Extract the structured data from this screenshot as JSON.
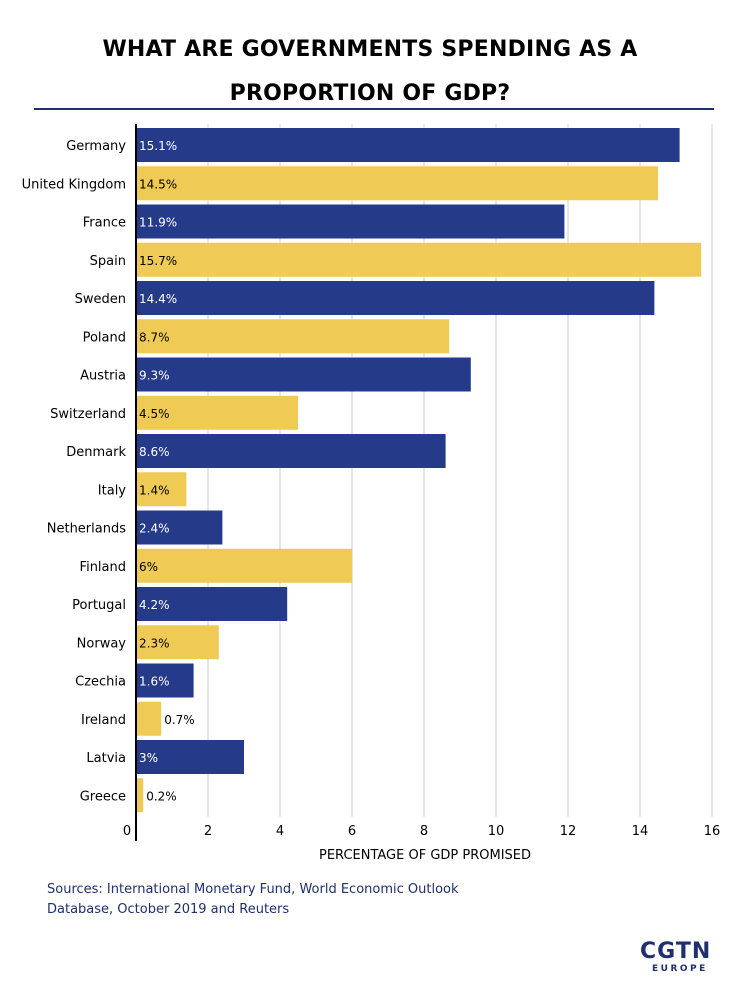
{
  "header": {
    "title_line1": "WHAT ARE GOVERNMENTS SPENDING AS A",
    "title_line2": "PROPORTION OF GDP?"
  },
  "footer": {
    "sources_line1": "Sources: International Monetary Fund, World Economic Outlook",
    "sources_line2": "Database, October 2019 and Reuters",
    "logo_main": "CGTN",
    "logo_sub": "EUROPE"
  },
  "colors": {
    "navy": "#263a8a",
    "yellow": "#efcb55",
    "grid": "#cccccc",
    "axis": "#000000"
  },
  "chart_data": {
    "type": "bar",
    "orientation": "horizontal",
    "xlabel": "PERCENTAGE OF GDP PROMISED",
    "xlim": [
      0,
      16
    ],
    "xticks": [
      0,
      2,
      4,
      6,
      8,
      10,
      12,
      14,
      16
    ],
    "grid": true,
    "bar_colors": "alternating navy / yellow",
    "categories": [
      "Germany",
      "United Kingdom",
      "France",
      "Spain",
      "Sweden",
      "Poland",
      "Austria",
      "Switzerland",
      "Denmark",
      "Italy",
      "Netherlands",
      "Finland",
      "Portugal",
      "Norway",
      "Czechia",
      "Ireland",
      "Latvia",
      "Greece"
    ],
    "values": [
      15.1,
      14.5,
      11.9,
      15.7,
      14.4,
      8.7,
      9.3,
      4.5,
      8.6,
      1.4,
      2.4,
      6,
      4.2,
      2.3,
      1.6,
      0.7,
      3,
      0.2
    ],
    "data_labels": [
      "15.1%",
      "14.5%",
      "11.9%",
      "15.7%",
      "14.4%",
      "8.7%",
      "9.3%",
      "4.5%",
      "8.6%",
      "1.4%",
      "2.4%",
      "6%",
      "4.2%",
      "2.3%",
      "1.6%",
      "0.7%",
      "3%",
      "0.2%"
    ]
  }
}
